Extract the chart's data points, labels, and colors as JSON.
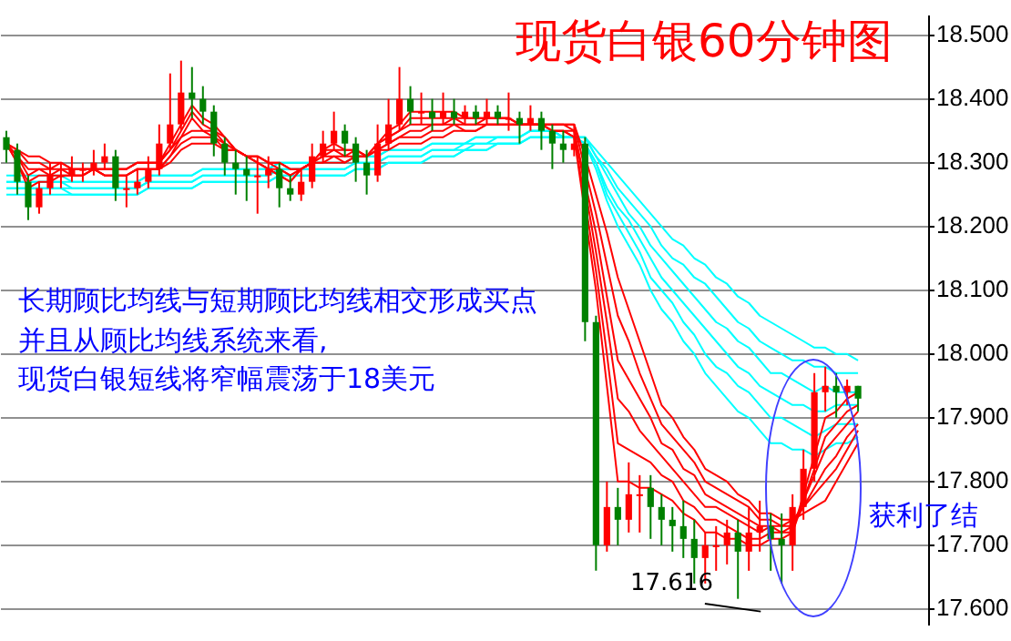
{
  "chart_data": {
    "type": "candlestick",
    "title": "现货白银60分钟图",
    "annotations": [
      "长期顾比均线与短期顾比均线相交形成买点",
      "并且从顾比均线系统来看,",
      "现货白银短线将窄幅震荡于18美元",
      "获利了结",
      "17.616"
    ],
    "categories": [
      null,
      null,
      null,
      null,
      null,
      null,
      null,
      null,
      null,
      null,
      null,
      null,
      null,
      null,
      null,
      null,
      null,
      null,
      null,
      null,
      null,
      null,
      null,
      null,
      null,
      null,
      null,
      null,
      null,
      null,
      null,
      null,
      null,
      null,
      null,
      null,
      null,
      null,
      null,
      null,
      null,
      null,
      null,
      null,
      null,
      null,
      null,
      null,
      null,
      null,
      null,
      null,
      null,
      null,
      null,
      null,
      null,
      null,
      null,
      null,
      null,
      null,
      null,
      null,
      null,
      null,
      null,
      null,
      null,
      null,
      null,
      null,
      null,
      null,
      null,
      null,
      null,
      null,
      null
    ],
    "ohlc": [
      [
        18.34,
        18.35,
        18.3,
        18.32
      ],
      [
        18.32,
        18.33,
        18.25,
        18.27
      ],
      [
        18.27,
        18.28,
        18.21,
        18.23
      ],
      [
        18.23,
        18.27,
        18.22,
        18.26
      ],
      [
        18.26,
        18.3,
        18.25,
        18.28
      ],
      [
        18.28,
        18.3,
        18.26,
        18.28
      ],
      [
        18.28,
        18.31,
        18.27,
        18.29
      ],
      [
        18.29,
        18.3,
        18.27,
        18.29
      ],
      [
        18.29,
        18.32,
        18.28,
        18.3
      ],
      [
        18.3,
        18.33,
        18.29,
        18.31
      ],
      [
        18.31,
        18.32,
        18.24,
        18.26
      ],
      [
        18.26,
        18.28,
        18.23,
        18.26
      ],
      [
        18.26,
        18.29,
        18.25,
        18.27
      ],
      [
        18.27,
        18.31,
        18.26,
        18.29
      ],
      [
        18.29,
        18.36,
        18.28,
        18.33
      ],
      [
        18.33,
        18.44,
        18.32,
        18.36
      ],
      [
        18.36,
        18.46,
        18.35,
        18.41
      ],
      [
        18.41,
        18.45,
        18.37,
        18.4
      ],
      [
        18.4,
        18.42,
        18.36,
        18.38
      ],
      [
        18.38,
        18.39,
        18.31,
        18.33
      ],
      [
        18.33,
        18.34,
        18.28,
        18.3
      ],
      [
        18.3,
        18.32,
        18.25,
        18.29
      ],
      [
        18.29,
        18.31,
        18.24,
        18.28
      ],
      [
        18.28,
        18.31,
        18.22,
        18.28
      ],
      [
        18.28,
        18.31,
        18.26,
        18.29
      ],
      [
        18.29,
        18.3,
        18.23,
        18.26
      ],
      [
        18.26,
        18.28,
        18.24,
        18.25
      ],
      [
        18.25,
        18.29,
        18.24,
        18.27
      ],
      [
        18.27,
        18.33,
        18.26,
        18.31
      ],
      [
        18.31,
        18.35,
        18.3,
        18.33
      ],
      [
        18.33,
        18.38,
        18.32,
        18.35
      ],
      [
        18.35,
        18.36,
        18.31,
        18.33
      ],
      [
        18.33,
        18.34,
        18.27,
        18.3
      ],
      [
        18.3,
        18.32,
        18.25,
        18.28
      ],
      [
        18.28,
        18.36,
        18.27,
        18.33
      ],
      [
        18.33,
        18.4,
        18.32,
        18.36
      ],
      [
        18.36,
        18.45,
        18.35,
        18.4
      ],
      [
        18.4,
        18.42,
        18.36,
        18.38
      ],
      [
        18.38,
        18.41,
        18.36,
        18.38
      ],
      [
        18.38,
        18.4,
        18.35,
        18.37
      ],
      [
        18.37,
        18.41,
        18.36,
        18.38
      ],
      [
        18.38,
        18.4,
        18.36,
        18.37
      ],
      [
        18.37,
        18.39,
        18.36,
        18.38
      ],
      [
        18.38,
        18.39,
        18.36,
        18.37
      ],
      [
        18.37,
        18.4,
        18.36,
        18.38
      ],
      [
        18.38,
        18.39,
        18.36,
        18.37
      ],
      [
        18.37,
        18.41,
        18.35,
        18.37
      ],
      [
        18.37,
        18.38,
        18.33,
        18.36
      ],
      [
        18.36,
        18.39,
        18.35,
        18.37
      ],
      [
        18.37,
        18.38,
        18.32,
        18.35
      ],
      [
        18.35,
        18.36,
        18.29,
        18.33
      ],
      [
        18.33,
        18.35,
        18.3,
        18.32
      ],
      [
        18.32,
        18.36,
        18.31,
        18.33
      ],
      [
        18.33,
        18.34,
        18.02,
        18.05
      ],
      [
        18.05,
        18.06,
        17.66,
        17.7
      ],
      [
        17.7,
        17.8,
        17.69,
        17.76
      ],
      [
        17.76,
        17.79,
        17.7,
        17.74
      ],
      [
        17.74,
        17.83,
        17.72,
        17.78
      ],
      [
        17.78,
        17.81,
        17.72,
        17.78
      ],
      [
        17.79,
        17.81,
        17.71,
        17.76
      ],
      [
        17.76,
        17.78,
        17.7,
        17.74
      ],
      [
        17.74,
        17.76,
        17.69,
        17.73
      ],
      [
        17.73,
        17.77,
        17.68,
        17.71
      ],
      [
        17.71,
        17.74,
        17.64,
        17.68
      ],
      [
        17.68,
        17.72,
        17.64,
        17.7
      ],
      [
        17.7,
        17.73,
        17.66,
        17.7
      ],
      [
        17.7,
        17.74,
        17.67,
        17.72
      ],
      [
        17.72,
        17.74,
        17.616,
        17.69
      ],
      [
        17.69,
        17.76,
        17.66,
        17.72
      ],
      [
        17.72,
        17.77,
        17.69,
        17.73
      ],
      [
        17.73,
        17.75,
        17.66,
        17.71
      ],
      [
        17.71,
        17.75,
        17.64,
        17.7
      ],
      [
        17.7,
        17.78,
        17.66,
        17.76
      ],
      [
        17.76,
        17.85,
        17.74,
        17.82
      ],
      [
        17.82,
        17.97,
        17.8,
        17.94
      ],
      [
        17.94,
        17.98,
        17.91,
        17.95
      ],
      [
        17.95,
        17.97,
        17.9,
        17.94
      ],
      [
        17.94,
        17.96,
        17.92,
        17.95
      ],
      [
        17.95,
        17.95,
        17.91,
        17.93
      ]
    ],
    "colors": [
      "#008000",
      "#008000",
      "#008000",
      "#ff0000",
      "#ff0000",
      "#ff0000",
      "#ff0000",
      "#ff0000",
      "#ff0000",
      "#ff0000",
      "#008000",
      "#ff0000",
      "#ff0000",
      "#ff0000",
      "#ff0000",
      "#ff0000",
      "#ff0000",
      "#008000",
      "#008000",
      "#008000",
      "#008000",
      "#008000",
      "#008000",
      "#ff0000",
      "#ff0000",
      "#008000",
      "#008000",
      "#ff0000",
      "#ff0000",
      "#ff0000",
      "#ff0000",
      "#008000",
      "#008000",
      "#008000",
      "#ff0000",
      "#ff0000",
      "#ff0000",
      "#008000",
      "#ff0000",
      "#008000",
      "#ff0000",
      "#008000",
      "#ff0000",
      "#008000",
      "#ff0000",
      "#008000",
      "#ff0000",
      "#008000",
      "#ff0000",
      "#008000",
      "#008000",
      "#008000",
      "#ff0000",
      "#008000",
      "#008000",
      "#ff0000",
      "#008000",
      "#ff0000",
      "#ff0000",
      "#008000",
      "#008000",
      "#008000",
      "#008000",
      "#008000",
      "#ff0000",
      "#ff0000",
      "#ff0000",
      "#008000",
      "#ff0000",
      "#ff0000",
      "#008000",
      "#008000",
      "#ff0000",
      "#ff0000",
      "#ff0000",
      "#ff0000",
      "#008000",
      "#ff0000",
      "#008000"
    ],
    "series": [
      {
        "type": "line",
        "color": "#ff0000",
        "values": [
          18.33,
          18.3,
          18.26,
          18.27,
          18.27,
          18.28,
          18.28,
          18.28,
          18.29,
          18.29,
          18.29,
          18.29,
          18.3,
          18.3,
          18.3,
          18.33,
          18.36,
          18.39,
          18.37,
          18.36,
          18.34,
          18.32,
          18.31,
          18.3,
          18.29,
          18.28,
          18.27,
          18.29,
          18.3,
          18.32,
          18.33,
          18.32,
          18.32,
          18.31,
          18.33,
          18.35,
          18.36,
          18.38,
          18.38,
          18.38,
          18.38,
          18.38,
          18.37,
          18.37,
          18.37,
          18.37,
          18.37,
          18.36,
          18.36,
          18.36,
          18.35,
          18.35,
          18.34,
          18.22,
          18.1,
          17.95,
          17.8,
          17.8,
          17.79,
          17.79,
          17.78,
          17.77,
          17.75,
          17.74,
          17.72,
          17.72,
          17.71,
          17.71,
          17.7,
          17.7,
          17.71,
          17.71,
          17.72,
          17.78,
          17.84,
          17.9,
          17.91,
          17.93,
          17.94
        ]
      },
      {
        "type": "line",
        "color": "#ff0000",
        "values": [
          18.33,
          18.3,
          18.27,
          18.28,
          18.28,
          18.28,
          18.28,
          18.28,
          18.29,
          18.29,
          18.29,
          18.29,
          18.3,
          18.3,
          18.3,
          18.32,
          18.35,
          18.38,
          18.36,
          18.35,
          18.34,
          18.32,
          18.31,
          18.3,
          18.29,
          18.28,
          18.27,
          18.29,
          18.3,
          18.32,
          18.32,
          18.32,
          18.32,
          18.31,
          18.33,
          18.34,
          18.35,
          18.37,
          18.37,
          18.37,
          18.37,
          18.37,
          18.37,
          18.37,
          18.37,
          18.37,
          18.37,
          18.36,
          18.36,
          18.36,
          18.35,
          18.35,
          18.34,
          18.24,
          18.13,
          18.0,
          17.86,
          17.85,
          17.84,
          17.83,
          17.81,
          17.8,
          17.77,
          17.76,
          17.74,
          17.74,
          17.73,
          17.72,
          17.71,
          17.71,
          17.72,
          17.72,
          17.72,
          17.77,
          17.82,
          17.87,
          17.89,
          17.91,
          17.92
        ]
      },
      {
        "type": "line",
        "color": "#ff0000",
        "values": [
          18.33,
          18.31,
          18.28,
          18.29,
          18.28,
          18.29,
          18.28,
          18.28,
          18.29,
          18.29,
          18.29,
          18.29,
          18.3,
          18.3,
          18.3,
          18.32,
          18.34,
          18.37,
          18.35,
          18.35,
          18.33,
          18.32,
          18.31,
          18.3,
          18.29,
          18.29,
          18.28,
          18.29,
          18.3,
          18.31,
          18.32,
          18.31,
          18.32,
          18.31,
          18.33,
          18.34,
          18.35,
          18.36,
          18.36,
          18.36,
          18.36,
          18.37,
          18.36,
          18.36,
          18.37,
          18.37,
          18.37,
          18.36,
          18.36,
          18.36,
          18.35,
          18.35,
          18.35,
          18.26,
          18.16,
          18.05,
          17.93,
          17.91,
          17.88,
          17.86,
          17.84,
          17.82,
          17.8,
          17.78,
          17.76,
          17.76,
          17.75,
          17.74,
          17.73,
          17.72,
          17.73,
          17.72,
          17.73,
          17.77,
          17.81,
          17.85,
          17.87,
          17.89,
          17.91
        ]
      },
      {
        "type": "line",
        "color": "#ff0000",
        "values": [
          18.33,
          18.31,
          18.29,
          18.29,
          18.29,
          18.29,
          18.29,
          18.29,
          18.29,
          18.28,
          18.28,
          18.28,
          18.29,
          18.29,
          18.29,
          18.31,
          18.34,
          18.35,
          18.35,
          18.34,
          18.33,
          18.32,
          18.31,
          18.31,
          18.3,
          18.29,
          18.28,
          18.29,
          18.3,
          18.31,
          18.31,
          18.31,
          18.31,
          18.31,
          18.32,
          18.33,
          18.34,
          18.35,
          18.35,
          18.36,
          18.36,
          18.36,
          18.36,
          18.36,
          18.36,
          18.36,
          18.36,
          18.36,
          18.36,
          18.36,
          18.36,
          18.36,
          18.35,
          18.27,
          18.19,
          18.09,
          17.99,
          17.96,
          17.93,
          17.9,
          17.86,
          17.85,
          17.82,
          17.81,
          17.78,
          17.77,
          17.76,
          17.75,
          17.74,
          17.73,
          17.73,
          17.73,
          17.73,
          17.76,
          17.79,
          17.82,
          17.84,
          17.87,
          17.89
        ]
      },
      {
        "type": "line",
        "color": "#ff0000",
        "values": [
          18.33,
          18.32,
          18.3,
          18.3,
          18.29,
          18.3,
          18.29,
          18.29,
          18.29,
          18.28,
          18.28,
          18.28,
          18.29,
          18.29,
          18.29,
          18.31,
          18.33,
          18.34,
          18.34,
          18.34,
          18.32,
          18.32,
          18.31,
          18.31,
          18.3,
          18.3,
          18.29,
          18.29,
          18.3,
          18.3,
          18.31,
          18.3,
          18.31,
          18.31,
          18.32,
          18.33,
          18.34,
          18.34,
          18.34,
          18.35,
          18.35,
          18.36,
          18.35,
          18.35,
          18.36,
          18.36,
          18.36,
          18.36,
          18.36,
          18.36,
          18.36,
          18.36,
          18.36,
          18.29,
          18.22,
          18.14,
          18.06,
          18.02,
          17.97,
          17.93,
          17.89,
          17.87,
          17.85,
          17.83,
          17.8,
          17.79,
          17.78,
          17.77,
          17.76,
          17.74,
          17.74,
          17.73,
          17.74,
          17.76,
          17.78,
          17.8,
          17.82,
          17.85,
          17.88
        ]
      },
      {
        "type": "line",
        "color": "#ff0000",
        "values": [
          18.33,
          18.32,
          18.31,
          18.31,
          18.3,
          18.3,
          18.29,
          18.29,
          18.29,
          18.28,
          18.28,
          18.28,
          18.29,
          18.29,
          18.29,
          18.3,
          18.32,
          18.33,
          18.33,
          18.33,
          18.32,
          18.32,
          18.31,
          18.31,
          18.3,
          18.3,
          18.29,
          18.29,
          18.3,
          18.3,
          18.3,
          18.3,
          18.31,
          18.31,
          18.32,
          18.32,
          18.33,
          18.33,
          18.33,
          18.34,
          18.34,
          18.35,
          18.35,
          18.35,
          18.36,
          18.36,
          18.36,
          18.36,
          18.36,
          18.36,
          18.36,
          18.36,
          18.36,
          18.31,
          18.25,
          18.19,
          18.12,
          18.07,
          18.02,
          17.97,
          17.92,
          17.9,
          17.87,
          17.85,
          17.82,
          17.81,
          17.8,
          17.78,
          17.77,
          17.75,
          17.75,
          17.74,
          17.74,
          17.75,
          17.76,
          17.77,
          17.8,
          17.83,
          17.86
        ]
      },
      {
        "type": "line",
        "color": "#00ffff",
        "values": [
          18.28,
          18.28,
          18.28,
          18.28,
          18.28,
          18.28,
          18.27,
          18.27,
          18.27,
          18.27,
          18.27,
          18.27,
          18.27,
          18.28,
          18.28,
          18.28,
          18.28,
          18.28,
          18.29,
          18.29,
          18.29,
          18.29,
          18.29,
          18.29,
          18.29,
          18.3,
          18.3,
          18.3,
          18.3,
          18.3,
          18.3,
          18.3,
          18.31,
          18.31,
          18.31,
          18.32,
          18.32,
          18.32,
          18.32,
          18.33,
          18.33,
          18.33,
          18.33,
          18.34,
          18.34,
          18.34,
          18.34,
          18.34,
          18.35,
          18.35,
          18.35,
          18.34,
          18.34,
          18.33,
          18.29,
          18.24,
          18.2,
          18.17,
          18.14,
          18.1,
          18.07,
          18.05,
          18.02,
          18.0,
          17.97,
          17.95,
          17.93,
          17.91,
          17.9,
          17.88,
          17.86,
          17.86,
          17.85,
          17.85,
          17.84,
          17.85,
          17.86,
          17.86,
          17.87
        ]
      },
      {
        "type": "line",
        "color": "#00ffff",
        "values": [
          18.27,
          18.27,
          18.27,
          18.27,
          18.27,
          18.27,
          18.27,
          18.27,
          18.27,
          18.27,
          18.27,
          18.27,
          18.27,
          18.28,
          18.28,
          18.28,
          18.28,
          18.28,
          18.29,
          18.29,
          18.29,
          18.29,
          18.29,
          18.29,
          18.29,
          18.3,
          18.3,
          18.3,
          18.3,
          18.3,
          18.3,
          18.3,
          18.31,
          18.31,
          18.31,
          18.32,
          18.32,
          18.32,
          18.32,
          18.33,
          18.33,
          18.33,
          18.33,
          18.34,
          18.34,
          18.34,
          18.34,
          18.34,
          18.35,
          18.35,
          18.35,
          18.34,
          18.34,
          18.33,
          18.3,
          18.25,
          18.22,
          18.19,
          18.16,
          18.12,
          18.1,
          18.08,
          18.05,
          18.03,
          18.0,
          17.98,
          17.97,
          17.95,
          17.94,
          17.92,
          17.9,
          17.9,
          17.89,
          17.88,
          17.87,
          17.88,
          17.89,
          17.89,
          17.89
        ]
      },
      {
        "type": "line",
        "color": "#00ffff",
        "values": [
          18.27,
          18.27,
          18.27,
          18.27,
          18.27,
          18.27,
          18.26,
          18.26,
          18.26,
          18.26,
          18.26,
          18.26,
          18.26,
          18.27,
          18.27,
          18.27,
          18.27,
          18.27,
          18.28,
          18.28,
          18.28,
          18.28,
          18.28,
          18.28,
          18.28,
          18.29,
          18.29,
          18.29,
          18.29,
          18.29,
          18.29,
          18.29,
          18.3,
          18.3,
          18.3,
          18.31,
          18.31,
          18.31,
          18.31,
          18.32,
          18.32,
          18.32,
          18.33,
          18.33,
          18.33,
          18.34,
          18.34,
          18.34,
          18.35,
          18.35,
          18.35,
          18.34,
          18.34,
          18.33,
          18.3,
          18.26,
          18.23,
          18.21,
          18.18,
          18.15,
          18.12,
          18.1,
          18.08,
          18.06,
          18.04,
          18.02,
          18.0,
          17.98,
          17.97,
          17.95,
          17.94,
          17.93,
          17.92,
          17.92,
          17.91,
          17.91,
          17.92,
          17.92,
          17.92
        ]
      },
      {
        "type": "line",
        "color": "#00ffff",
        "values": [
          18.26,
          18.26,
          18.26,
          18.26,
          18.26,
          18.26,
          18.26,
          18.26,
          18.26,
          18.26,
          18.26,
          18.26,
          18.26,
          18.27,
          18.27,
          18.27,
          18.27,
          18.27,
          18.28,
          18.28,
          18.28,
          18.28,
          18.28,
          18.28,
          18.28,
          18.29,
          18.29,
          18.29,
          18.29,
          18.29,
          18.29,
          18.29,
          18.3,
          18.3,
          18.3,
          18.31,
          18.31,
          18.31,
          18.31,
          18.32,
          18.32,
          18.32,
          18.32,
          18.33,
          18.33,
          18.33,
          18.33,
          18.33,
          18.34,
          18.34,
          18.34,
          18.34,
          18.34,
          18.34,
          18.31,
          18.28,
          18.25,
          18.22,
          18.2,
          18.17,
          18.15,
          18.13,
          18.11,
          18.09,
          18.07,
          18.05,
          18.04,
          18.02,
          18.01,
          17.99,
          17.97,
          17.97,
          17.96,
          17.95,
          17.94,
          17.95,
          17.94,
          17.94,
          17.94
        ]
      },
      {
        "type": "line",
        "color": "#00ffff",
        "values": [
          18.26,
          18.26,
          18.26,
          18.26,
          18.26,
          18.26,
          18.25,
          18.25,
          18.25,
          18.25,
          18.25,
          18.25,
          18.25,
          18.26,
          18.26,
          18.26,
          18.26,
          18.26,
          18.27,
          18.27,
          18.27,
          18.27,
          18.27,
          18.27,
          18.27,
          18.28,
          18.28,
          18.28,
          18.28,
          18.28,
          18.28,
          18.28,
          18.29,
          18.29,
          18.29,
          18.3,
          18.3,
          18.3,
          18.3,
          18.31,
          18.31,
          18.31,
          18.32,
          18.32,
          18.32,
          18.33,
          18.33,
          18.33,
          18.34,
          18.34,
          18.34,
          18.34,
          18.34,
          18.34,
          18.31,
          18.29,
          18.26,
          18.24,
          18.22,
          18.2,
          18.17,
          18.15,
          18.14,
          18.12,
          18.11,
          18.09,
          18.07,
          18.05,
          18.04,
          18.02,
          18.01,
          18.0,
          17.99,
          17.99,
          17.98,
          17.98,
          17.97,
          17.97,
          17.97
        ]
      },
      {
        "type": "line",
        "color": "#00ffff",
        "values": [
          18.25,
          18.25,
          18.25,
          18.25,
          18.25,
          18.25,
          18.25,
          18.25,
          18.25,
          18.25,
          18.25,
          18.25,
          18.25,
          18.26,
          18.26,
          18.26,
          18.26,
          18.26,
          18.27,
          18.27,
          18.27,
          18.27,
          18.27,
          18.27,
          18.27,
          18.28,
          18.28,
          18.28,
          18.28,
          18.28,
          18.28,
          18.28,
          18.29,
          18.29,
          18.29,
          18.3,
          18.3,
          18.3,
          18.3,
          18.31,
          18.31,
          18.31,
          18.32,
          18.32,
          18.32,
          18.33,
          18.33,
          18.33,
          18.34,
          18.34,
          18.34,
          18.34,
          18.34,
          18.34,
          18.32,
          18.3,
          18.28,
          18.26,
          18.24,
          18.22,
          18.2,
          18.18,
          18.17,
          18.15,
          18.14,
          18.12,
          18.11,
          18.09,
          18.08,
          18.06,
          18.05,
          18.04,
          18.03,
          18.02,
          18.01,
          18.01,
          18.0,
          18.0,
          17.99
        ]
      }
    ],
    "ylim": [
      17.575,
      18.53
    ],
    "yticks": [
      {
        "value": 17.6,
        "label": "17.600"
      },
      {
        "value": 17.7,
        "label": "17.700"
      },
      {
        "value": 17.8,
        "label": "17.800"
      },
      {
        "value": 17.9,
        "label": "17.900"
      },
      {
        "value": 18.0,
        "label": "18.000"
      },
      {
        "value": 18.1,
        "label": "18.100"
      },
      {
        "value": 18.2,
        "label": "18.200"
      },
      {
        "value": 18.3,
        "label": "18.300"
      },
      {
        "value": 18.4,
        "label": "18.400"
      },
      {
        "value": 18.5,
        "label": "18.500"
      }
    ],
    "grid": "y",
    "tick_labels": "y"
  }
}
